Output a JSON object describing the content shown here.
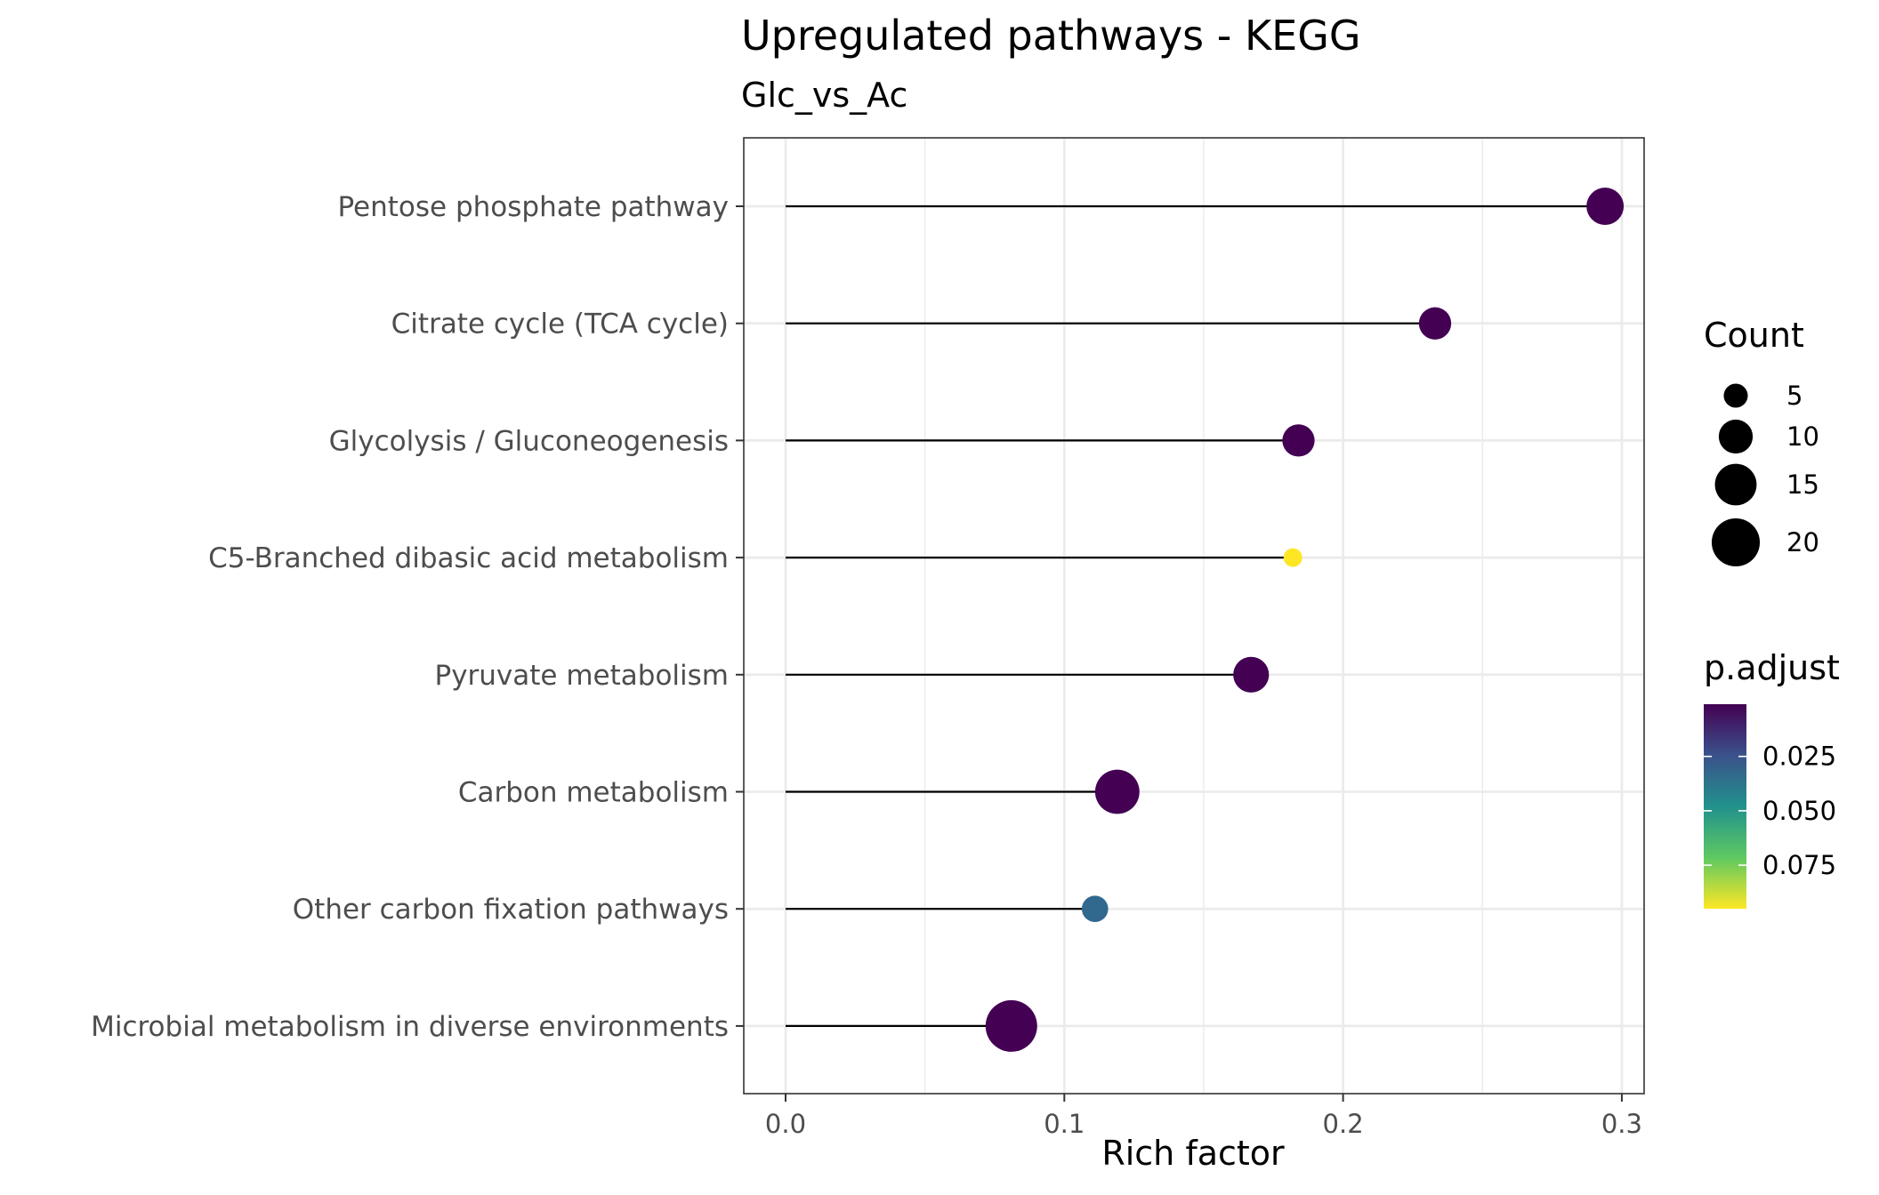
{
  "chart_data": {
    "type": "scatter",
    "style": "lollipop",
    "title": "Upregulated pathways - KEGG",
    "subtitle": "Glc_vs_Ac",
    "xlabel": "Rich factor",
    "ylabel": "",
    "xlim": [
      -0.015,
      0.308
    ],
    "xticks": [
      0.0,
      0.1,
      0.2,
      0.3
    ],
    "xtick_labels": [
      "0.0",
      "0.1",
      "0.2",
      "0.3"
    ],
    "grid": true,
    "categories": [
      "Pentose phosphate pathway",
      "Citrate cycle (TCA cycle)",
      "Glycolysis / Gluconeogenesis",
      "C5-Branched dibasic acid metabolism",
      "Pyruvate metabolism",
      "Carbon metabolism",
      "Other carbon fixation pathways",
      "Microbial metabolism in diverse environments"
    ],
    "values": [
      0.294,
      0.233,
      0.184,
      0.182,
      0.167,
      0.119,
      0.111,
      0.081
    ],
    "count": [
      12,
      9,
      9,
      3,
      11,
      17,
      6,
      23
    ],
    "p_adjust": [
      0.001,
      0.001,
      0.001,
      0.095,
      0.001,
      0.001,
      0.035,
      0.001
    ],
    "point_colors": [
      "#440154",
      "#440154",
      "#440154",
      "#fde725",
      "#440154",
      "#440154",
      "#31688e",
      "#440154"
    ],
    "size_legend": {
      "title": "Count",
      "breaks": [
        5,
        10,
        15,
        20
      ],
      "labels": [
        "5",
        "10",
        "15",
        "20"
      ]
    },
    "color_legend": {
      "title": "p.adjust",
      "range": [
        0.001,
        0.095
      ],
      "breaks": [
        0.025,
        0.05,
        0.075
      ],
      "labels": [
        "0.025",
        "0.050",
        "0.075"
      ],
      "colors": [
        "#440154",
        "#3b528b",
        "#21918c",
        "#5ec962",
        "#fde725"
      ]
    },
    "legend_position": "right"
  }
}
